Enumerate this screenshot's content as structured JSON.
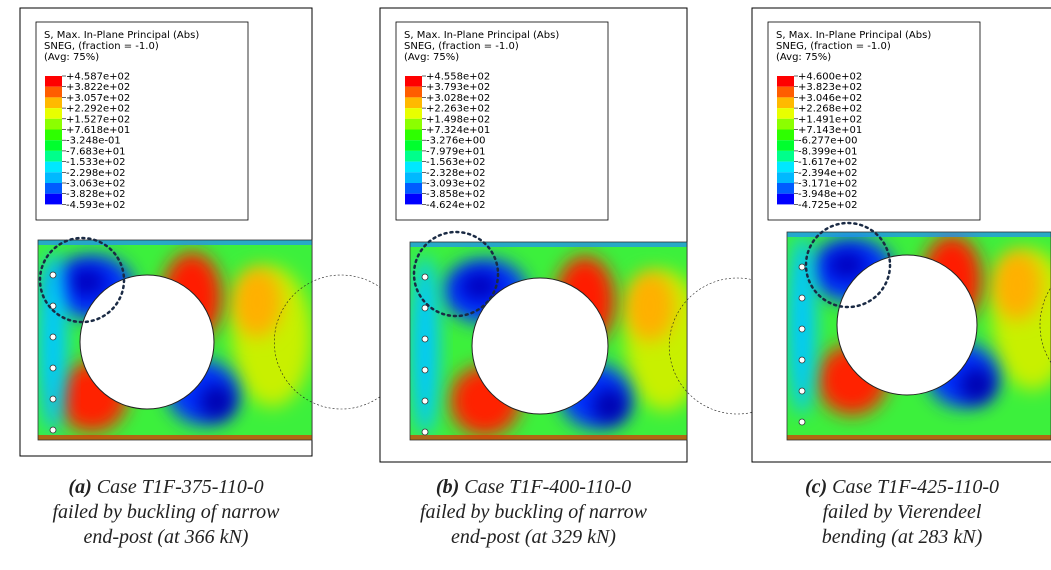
{
  "panels": [
    {
      "legend": {
        "header": [
          "S, Max. In-Plane Principal (Abs)",
          "SNEG, (fraction = -1.0)",
          "(Avg: 75%)"
        ],
        "labels": [
          "+4.587e+02",
          "+3.822e+02",
          "+3.057e+02",
          "+2.292e+02",
          "+1.527e+02",
          "+7.618e+01",
          "-3.248e-01",
          "-7.683e+01",
          "-1.533e+02",
          "-2.298e+02",
          "-3.063e+02",
          "-3.828e+02",
          "-4.593e+02"
        ]
      },
      "caption": {
        "label": "(a)",
        "lines": [
          "Case T1F-375-110-0",
          "failed by buckling of narrow",
          "end-post (at 366 kN)"
        ]
      }
    },
    {
      "legend": {
        "header": [
          "S, Max. In-Plane Principal (Abs)",
          "SNEG, (fraction = -1.0)",
          "(Avg: 75%)"
        ],
        "labels": [
          "+4.558e+02",
          "+3.793e+02",
          "+3.028e+02",
          "+2.263e+02",
          "+1.498e+02",
          "+7.324e+01",
          "-3.276e+00",
          "-7.979e+01",
          "-1.563e+02",
          "-2.328e+02",
          "-3.093e+02",
          "-3.858e+02",
          "-4.624e+02"
        ]
      },
      "caption": {
        "label": "(b)",
        "lines": [
          "Case T1F-400-110-0",
          "failed by buckling of narrow",
          "end-post (at 329 kN)"
        ]
      }
    },
    {
      "legend": {
        "header": [
          "S, Max. In-Plane Principal (Abs)",
          "SNEG, (fraction = -1.0)",
          "(Avg: 75%)"
        ],
        "labels": [
          "+4.600e+02",
          "+3.823e+02",
          "+3.046e+02",
          "+2.268e+02",
          "+1.491e+02",
          "+7.143e+01",
          "-6.277e+00",
          "-8.399e+01",
          "-1.617e+02",
          "-2.394e+02",
          "-3.171e+02",
          "-3.948e+02",
          "-4.725e+02"
        ]
      },
      "caption": {
        "label": "(c)",
        "lines": [
          "Case T1F-425-110-0",
          "failed by Vierendeel",
          "bending (at 283 kN)"
        ]
      }
    }
  ]
}
